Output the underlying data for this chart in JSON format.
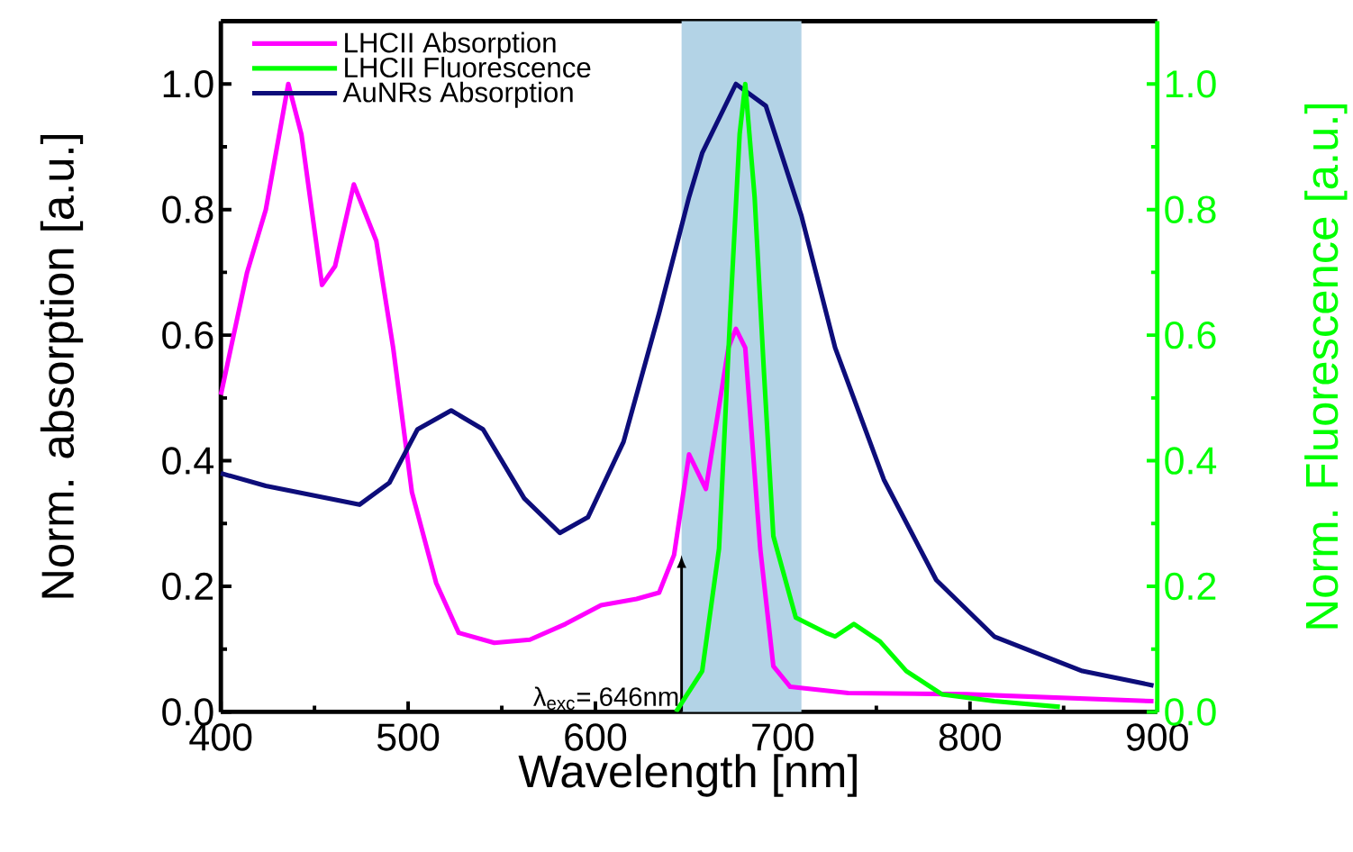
{
  "chart_data": {
    "type": "line",
    "xlabel": "Wavelength [nm]",
    "ylabel": "Norm. absorption [a.u.]",
    "y2label": "Norm. Fluorescence [a.u.]",
    "xlim": [
      400,
      900
    ],
    "xticks": [
      400,
      500,
      600,
      700,
      800,
      900
    ],
    "ylim": [
      0,
      1.1
    ],
    "yticks": [
      {
        "value": 0,
        "label": "0.0"
      },
      {
        "value": 0.2,
        "label": "0.2"
      },
      {
        "value": 0.4,
        "label": "0.4"
      },
      {
        "value": 0.6,
        "label": "0.6"
      },
      {
        "value": 0.8,
        "label": "0.8"
      },
      {
        "value": 1.0,
        "label": "1.0"
      }
    ],
    "y2lim": [
      0,
      1.1
    ],
    "y2ticks": [
      {
        "value": 0,
        "label": "0.0"
      },
      {
        "value": 0.2,
        "label": "0.2"
      },
      {
        "value": 0.4,
        "label": "0.4"
      },
      {
        "value": 0.6,
        "label": "0.6"
      },
      {
        "value": 0.8,
        "label": "0.8"
      },
      {
        "value": 1.0,
        "label": "1.0"
      }
    ],
    "legend": "top left",
    "bands": [
      {
        "axis": "x",
        "from": 646,
        "to": 710,
        "color": "#b3d3e6"
      }
    ],
    "annotations": [
      {
        "text": "λ$_{exc}$= 646nm",
        "x": 646,
        "y": 0.25
      }
    ],
    "series": [
      {
        "name": "LHCII Absorption",
        "color": "#ff00ff",
        "x": [
          400,
          414,
          424,
          436,
          443,
          454,
          461,
          471,
          483,
          492,
          502,
          515,
          527,
          546,
          565,
          584,
          603,
          622,
          634,
          642,
          650,
          659,
          671,
          675,
          680,
          688,
          695,
          704,
          735,
          798,
          898
        ],
        "values": [
          0.505,
          0.7,
          0.8,
          1.0,
          0.92,
          0.68,
          0.71,
          0.84,
          0.75,
          0.58,
          0.35,
          0.205,
          0.126,
          0.11,
          0.115,
          0.14,
          0.17,
          0.18,
          0.19,
          0.25,
          0.41,
          0.355,
          0.58,
          0.61,
          0.58,
          0.26,
          0.073,
          0.04,
          0.03,
          0.028,
          0.017
        ]
      },
      {
        "name": "LHCII Fluorescence",
        "color": "#00ff00",
        "axis": "y2",
        "x": [
          643,
          657,
          666,
          672,
          677,
          680,
          685,
          690,
          695,
          707,
          723,
          728,
          738,
          752,
          766,
          785,
          813,
          848
        ],
        "values": [
          0.0,
          0.065,
          0.26,
          0.635,
          0.92,
          1.0,
          0.82,
          0.54,
          0.28,
          0.15,
          0.126,
          0.12,
          0.14,
          0.112,
          0.065,
          0.028,
          0.017,
          0.008
        ]
      },
      {
        "name": "AuNRs Absorption",
        "color": "#0d0d7a",
        "x": [
          400,
          424,
          474,
          490,
          505,
          523,
          540,
          562,
          581,
          596,
          615,
          634,
          650,
          657,
          675,
          691,
          710,
          728,
          754,
          782,
          813,
          860,
          898
        ],
        "values": [
          0.38,
          0.36,
          0.33,
          0.365,
          0.45,
          0.48,
          0.45,
          0.34,
          0.285,
          0.31,
          0.43,
          0.635,
          0.82,
          0.89,
          1.0,
          0.965,
          0.79,
          0.58,
          0.37,
          0.21,
          0.12,
          0.065,
          0.042
        ]
      }
    ]
  }
}
